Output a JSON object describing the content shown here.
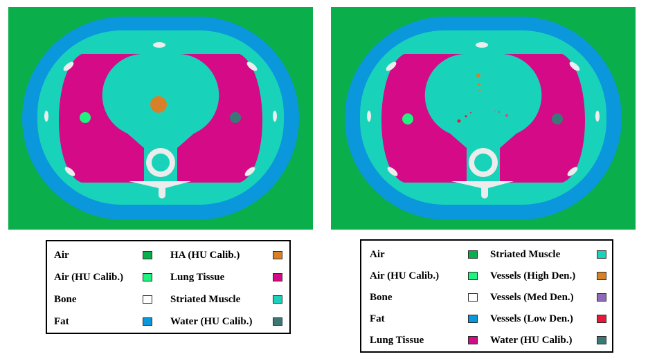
{
  "colors": {
    "air": "#0aae4a",
    "air_hu_calib": "#1ff27e",
    "bone": "#ffffff",
    "bone_render": "#ececec",
    "fat": "#0a97dc",
    "ha_hu_calib": "#d88028",
    "lung_tissue": "#d40a86",
    "striated_muscle": "#18d3ba",
    "water_hu_calib": "#3a7878",
    "vessels_high_den": "#d88028",
    "vessels_med_den": "#8e6ab6",
    "vessels_low_den": "#e8183a"
  },
  "legend_left": {
    "items": [
      {
        "label": "Air",
        "color": "#0aae4a"
      },
      {
        "label": "Air (HU Calib.)",
        "color": "#1ff27e"
      },
      {
        "label": "Bone",
        "color": "#ffffff"
      },
      {
        "label": "Fat",
        "color": "#0a97dc"
      },
      {
        "label": "HA (HU Calib.)",
        "color": "#d88028"
      },
      {
        "label": "Lung Tissue",
        "color": "#d40a86"
      },
      {
        "label": "Striated Muscle",
        "color": "#18d3ba"
      },
      {
        "label": "Water (HU Calib.)",
        "color": "#3a7878"
      }
    ]
  },
  "legend_right": {
    "items": [
      {
        "label": "Air",
        "color": "#0aae4a"
      },
      {
        "label": "Air (HU Calib.)",
        "color": "#1ff27e"
      },
      {
        "label": "Bone",
        "color": "#ffffff"
      },
      {
        "label": "Fat",
        "color": "#0a97dc"
      },
      {
        "label": "Lung Tissue",
        "color": "#d40a86"
      },
      {
        "label": "Striated Muscle",
        "color": "#18d3ba"
      },
      {
        "label": "Vessels (High Den.)",
        "color": "#d88028"
      },
      {
        "label": "Vessels (Med Den.)",
        "color": "#8e6ab6"
      },
      {
        "label": "Vessels (Low Den.)",
        "color": "#e8183a"
      },
      {
        "label": "Water (HU Calib.)",
        "color": "#3a7878"
      }
    ]
  }
}
